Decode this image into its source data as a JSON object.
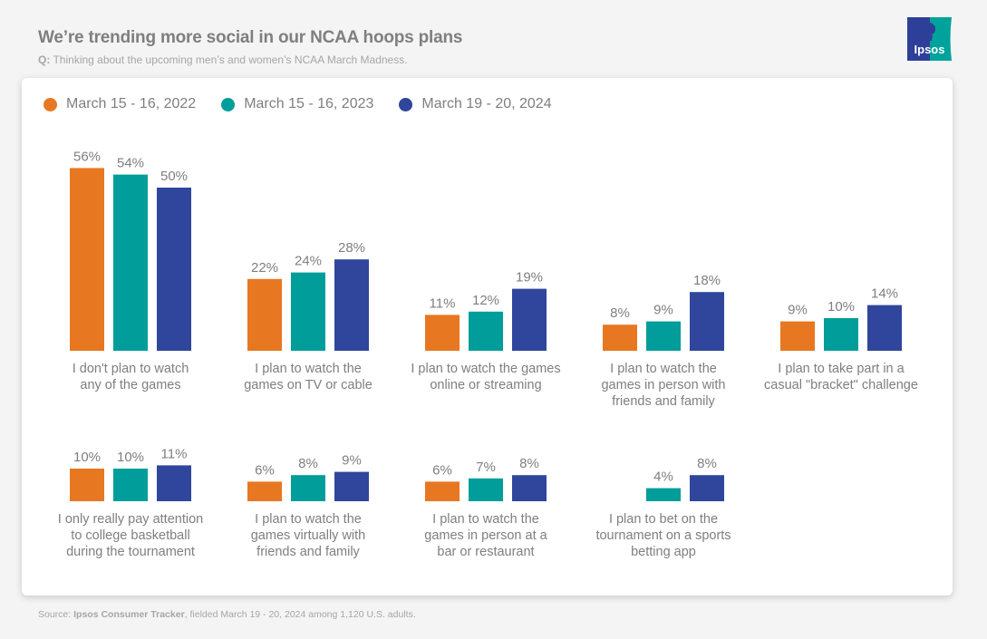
{
  "header": {
    "title": "We’re trending more social in our NCAA hoops plans",
    "question_prefix": "Q:",
    "question": "Thinking about the upcoming men’s and women’s NCAA March Madness."
  },
  "logo": {
    "text": "Ipsos",
    "colors": {
      "left": "#2e3f99",
      "right": "#00a39b"
    }
  },
  "footer": {
    "source_prefix": "Source:",
    "source_name": "Ipsos Consumer Tracker",
    "source_detail": ", fielded March 19 - 20, 2024 among 1,120 U.S. adults."
  },
  "chart_data": {
    "type": "bar",
    "title": "We’re trending more social in our NCAA hoops plans",
    "subtitle": "Q: Thinking about the upcoming men’s and women’s NCAA March Madness.",
    "xlabel": "",
    "ylabel": "",
    "ylim": [
      0,
      60
    ],
    "grid": false,
    "legend_position": "top-left",
    "value_format": "percent",
    "categories": [
      [
        "I don't plan to watch",
        "any of the games"
      ],
      [
        "I plan to watch the",
        "games on TV or cable"
      ],
      [
        "I plan to watch the games",
        "online or streaming"
      ],
      [
        "I plan to watch the",
        "games in person with",
        "friends and family"
      ],
      [
        "I plan to take part in a",
        "casual \"bracket\" challenge"
      ],
      [
        "I only really pay attention",
        "to college basketball",
        "during the tournament"
      ],
      [
        "I plan to watch the",
        "games virtually with",
        "friends and family"
      ],
      [
        "I plan to watch the",
        "games in person at a",
        "bar or restaurant"
      ],
      [
        "I plan to bet on the",
        "tournament on a sports",
        "betting app"
      ]
    ],
    "series": [
      {
        "name": "March 15 - 16, 2022",
        "color": "#e87722",
        "values": [
          56,
          22,
          11,
          8,
          9,
          10,
          6,
          6,
          null
        ]
      },
      {
        "name": "March 15 - 16, 2023",
        "color": "#009d9a",
        "values": [
          54,
          24,
          12,
          9,
          10,
          10,
          8,
          7,
          4
        ]
      },
      {
        "name": "March 19 - 20, 2024",
        "color": "#2f469c",
        "values": [
          50,
          28,
          19,
          18,
          14,
          11,
          9,
          8,
          8
        ]
      }
    ]
  }
}
